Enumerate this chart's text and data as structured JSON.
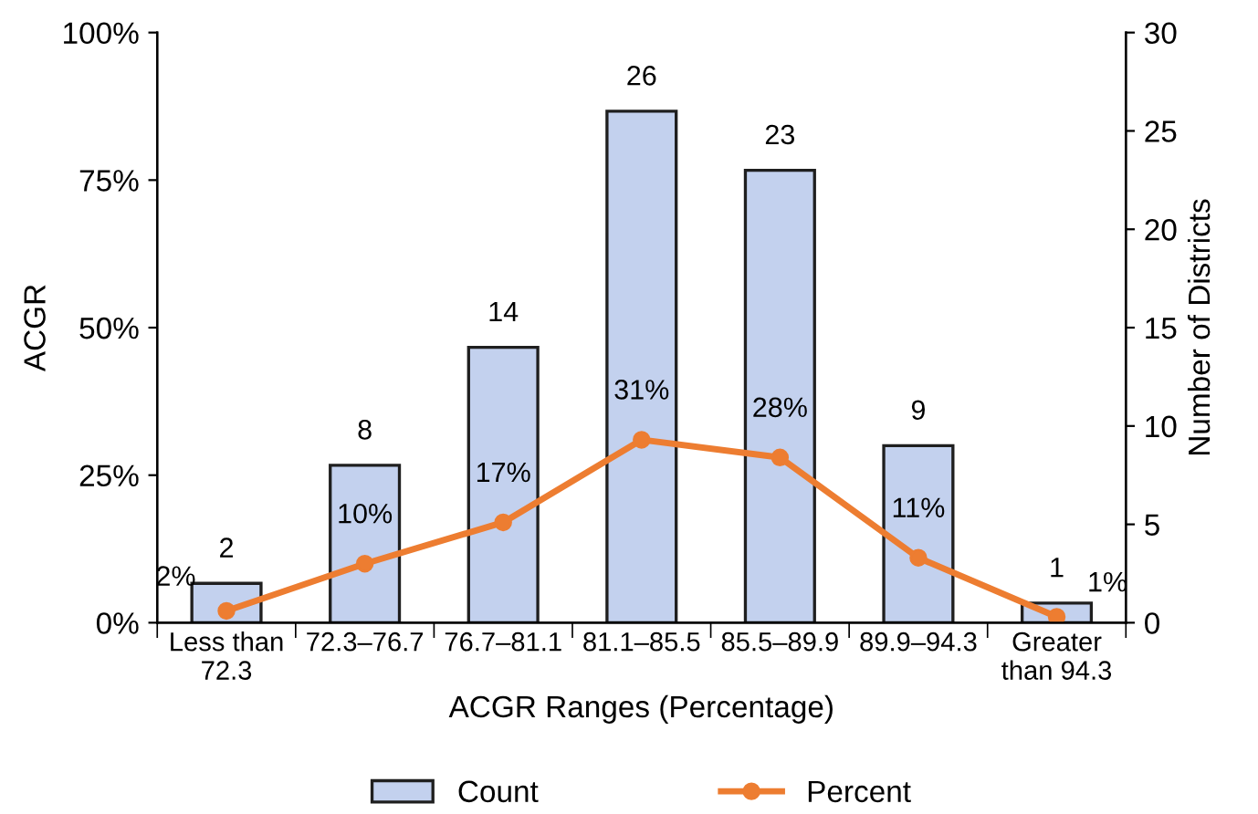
{
  "chart_data": {
    "type": "bar",
    "xlabel": "ACGR Ranges (Percentage)",
    "ylabel": "ACGR",
    "y2label": "Number of Districts",
    "categories": [
      "Less than\n72.3",
      "72.3–76.7",
      "76.7–81.1",
      "81.1–85.5",
      "85.5–89.9",
      "89.9–94.3",
      "Greater\nthan 94.3"
    ],
    "series": [
      {
        "name": "Count",
        "axis": "y2",
        "color": "#c3d1ee",
        "values": [
          2,
          8,
          14,
          26,
          23,
          9,
          1
        ],
        "value_labels": [
          "2",
          "8",
          "14",
          "26",
          "23",
          "9",
          "1"
        ]
      },
      {
        "name": "Percent",
        "type": "line",
        "axis": "y",
        "color": "#ed7d31",
        "marker": "circle",
        "values": [
          2,
          10,
          17,
          31,
          28,
          11,
          1
        ],
        "value_labels": [
          "2%",
          "10%",
          "17%",
          "31%",
          "28%",
          "11%",
          "1%"
        ]
      }
    ],
    "ylim": [
      0,
      100
    ],
    "yticks": [
      {
        "value": 0,
        "label": "0%"
      },
      {
        "value": 25,
        "label": "25%"
      },
      {
        "value": 50,
        "label": "50%"
      },
      {
        "value": 75,
        "label": "75%"
      },
      {
        "value": 100,
        "label": "100%"
      }
    ],
    "y2lim": [
      0,
      30
    ],
    "y2ticks": [
      0,
      5,
      10,
      15,
      20,
      25,
      30
    ],
    "grid": false,
    "legend": "bottom"
  }
}
